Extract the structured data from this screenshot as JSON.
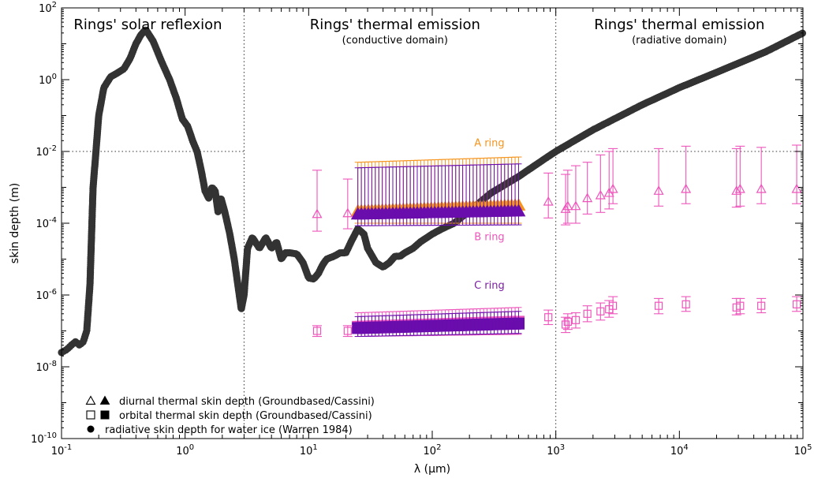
{
  "chart_data": {
    "type": "scatter",
    "xlabel": "λ (μm)",
    "ylabel": "skin depth (m)",
    "xscale": "log",
    "yscale": "log",
    "xlim": [
      0.1,
      100000
    ],
    "ylim": [
      1e-10,
      100
    ],
    "grid": false,
    "legend_position": "bottom-left",
    "x_ticks": [
      {
        "v": 0.1,
        "base": "10",
        "exp": "-1"
      },
      {
        "v": 1,
        "base": "10",
        "exp": "0"
      },
      {
        "v": 10,
        "base": "10",
        "exp": "1"
      },
      {
        "v": 100,
        "base": "10",
        "exp": "2"
      },
      {
        "v": 1000,
        "base": "10",
        "exp": "3"
      },
      {
        "v": 10000,
        "base": "10",
        "exp": "4"
      },
      {
        "v": 100000,
        "base": "10",
        "exp": "5"
      }
    ],
    "y_ticks": [
      {
        "v": 1e-10,
        "base": "10",
        "exp": "-10"
      },
      {
        "v": 1e-08,
        "base": "10",
        "exp": "-8"
      },
      {
        "v": 1e-06,
        "base": "10",
        "exp": "-6"
      },
      {
        "v": 0.0001,
        "base": "10",
        "exp": "-4"
      },
      {
        "v": 0.01,
        "base": "10",
        "exp": "-2"
      },
      {
        "v": 1,
        "base": "10",
        "exp": "0"
      },
      {
        "v": 100,
        "base": "10",
        "exp": "2"
      }
    ],
    "regions": [
      {
        "title": "Rings' solar reflexion",
        "subtitle": "",
        "center_x": 0.5
      },
      {
        "title": "Rings' thermal emission",
        "subtitle": "(conductive domain)",
        "center_x": 50
      },
      {
        "title": "Rings' thermal emission",
        "subtitle": "(radiative domain)",
        "center_x": 10000
      }
    ],
    "vlines": [
      3,
      1000
    ],
    "hlines": [
      {
        "y": 0.01,
        "x_from": 0.1,
        "x_to": 3
      },
      {
        "y": 0.01,
        "x_from": 1000,
        "x_to": 100000
      }
    ],
    "ring_labels": [
      {
        "text": "A ring",
        "x": 290,
        "y": 0.014,
        "color": "#f7941d"
      },
      {
        "text": "B ring",
        "x": 290,
        "y": 3.4e-05,
        "color": "#ee55bb"
      },
      {
        "text": "C ring",
        "x": 290,
        "y": 1.5e-06,
        "color": "#7b1fa2"
      }
    ],
    "colors": {
      "water_ice": "#333333",
      "groundbased": "#ee55bb",
      "ring_A": "#f7941d",
      "ring_B": "#ee55bb",
      "ring_C": "#6a0dad"
    },
    "legend": [
      {
        "symbols": [
          "open-triangle",
          "filled-triangle"
        ],
        "label": "diurnal thermal skin depth (Groundbased/Cassini)"
      },
      {
        "symbols": [
          "open-square",
          "filled-square"
        ],
        "label": "orbital thermal skin depth (Groundbased/Cassini)"
      },
      {
        "symbols": [
          "filled-circle"
        ],
        "label": "radiative skin depth for water ice (Warren 1984)"
      }
    ],
    "water_ice_curve": {
      "name": "radiative skin depth for water ice (Warren 1984)",
      "x": [
        0.1,
        0.11,
        0.12,
        0.13,
        0.14,
        0.15,
        0.16,
        0.17,
        0.18,
        0.19,
        0.2,
        0.22,
        0.25,
        0.28,
        0.32,
        0.36,
        0.4,
        0.44,
        0.48,
        0.55,
        0.65,
        0.75,
        0.85,
        0.95,
        1.05,
        1.15,
        1.25,
        1.35,
        1.45,
        1.55,
        1.65,
        1.75,
        1.85,
        1.95,
        2.1,
        2.3,
        2.5,
        2.7,
        2.85,
        3.0,
        3.2,
        3.5,
        4.0,
        4.5,
        5.0,
        5.5,
        6.0,
        6.5,
        7.0,
        8.0,
        9.0,
        10,
        11,
        12,
        13,
        14,
        16,
        18,
        20,
        22,
        25,
        28,
        30,
        35,
        40,
        45,
        50,
        55,
        60,
        70,
        80,
        100,
        120,
        150,
        200,
        300,
        500,
        800,
        1000,
        2000,
        5000,
        10000,
        20000,
        50000,
        100000
      ],
      "y": [
        2.5e-08,
        3e-08,
        4e-08,
        5e-08,
        4e-08,
        5e-08,
        1e-07,
        2e-06,
        0.001,
        0.01,
        0.1,
        0.6,
        1.2,
        1.5,
        2.0,
        4.0,
        10,
        18,
        25,
        12,
        3.0,
        1.0,
        0.3,
        0.08,
        0.05,
        0.02,
        0.01,
        0.003,
        0.0008,
        0.0005,
        0.001,
        0.0008,
        0.0002,
        0.0005,
        0.0002,
        5e-05,
        1e-05,
        1.5e-06,
        4e-07,
        1e-06,
        2e-05,
        4e-05,
        2e-05,
        4e-05,
        2e-05,
        3e-05,
        1e-05,
        1.5e-05,
        1.5e-05,
        1.4e-05,
        8e-06,
        3e-06,
        2.8e-06,
        4e-06,
        7e-06,
        1e-05,
        1.2e-05,
        1.5e-05,
        1.5e-05,
        3e-05,
        7e-05,
        5e-05,
        2e-05,
        8e-06,
        6e-06,
        8e-06,
        1.2e-05,
        1.2e-05,
        1.5e-05,
        2e-05,
        3e-05,
        5e-05,
        7e-05,
        0.0001,
        0.00022,
        0.0007,
        0.002,
        0.006,
        0.01,
        0.04,
        0.2,
        0.6,
        1.6,
        6,
        20
      ]
    },
    "groundbased_diurnal": {
      "name": "diurnal thermal skin depth (Groundbased)",
      "points": [
        {
          "x": 11.7,
          "y": 0.00018,
          "lo": 6e-05,
          "hi": 0.003
        },
        {
          "x": 20.7,
          "y": 0.00019,
          "lo": 7e-05,
          "hi": 0.0017
        },
        {
          "x": 870,
          "y": 0.0004,
          "lo": 0.00014,
          "hi": 0.0025
        },
        {
          "x": 1200,
          "y": 0.00025,
          "lo": 9e-05,
          "hi": 0.0023
        },
        {
          "x": 1250,
          "y": 0.0003,
          "lo": 0.0001,
          "hi": 0.003
        },
        {
          "x": 1450,
          "y": 0.0003,
          "lo": 0.0001,
          "hi": 0.004
        },
        {
          "x": 1800,
          "y": 0.0005,
          "lo": 0.00018,
          "hi": 0.005
        },
        {
          "x": 2300,
          "y": 0.0006,
          "lo": 0.0002,
          "hi": 0.008
        },
        {
          "x": 2700,
          "y": 0.0007,
          "lo": 0.00025,
          "hi": 0.01
        },
        {
          "x": 2900,
          "y": 0.0009,
          "lo": 0.00035,
          "hi": 0.012
        },
        {
          "x": 6800,
          "y": 0.0008,
          "lo": 0.0003,
          "hi": 0.012
        },
        {
          "x": 11300,
          "y": 0.0009,
          "lo": 0.00035,
          "hi": 0.014
        },
        {
          "x": 29000,
          "y": 0.0008,
          "lo": 0.00028,
          "hi": 0.012
        },
        {
          "x": 31000,
          "y": 0.0009,
          "lo": 0.0003,
          "hi": 0.014
        },
        {
          "x": 46000,
          "y": 0.0009,
          "lo": 0.00035,
          "hi": 0.013
        },
        {
          "x": 89000,
          "y": 0.0009,
          "lo": 0.00035,
          "hi": 0.015
        }
      ]
    },
    "groundbased_orbital": {
      "name": "orbital thermal skin depth (Groundbased)",
      "points": [
        {
          "x": 11.7,
          "y": 1e-07,
          "lo": 7e-08,
          "hi": 1.4e-07
        },
        {
          "x": 20.7,
          "y": 1e-07,
          "lo": 7e-08,
          "hi": 1.4e-07
        },
        {
          "x": 870,
          "y": 2.4e-07,
          "lo": 1.5e-07,
          "hi": 3.8e-07
        },
        {
          "x": 1200,
          "y": 1.5e-07,
          "lo": 9e-08,
          "hi": 2.4e-07
        },
        {
          "x": 1250,
          "y": 1.8e-07,
          "lo": 1.1e-07,
          "hi": 3e-07
        },
        {
          "x": 1450,
          "y": 2e-07,
          "lo": 1.2e-07,
          "hi": 3.2e-07
        },
        {
          "x": 1800,
          "y": 3e-07,
          "lo": 1.8e-07,
          "hi": 5e-07
        },
        {
          "x": 2300,
          "y": 3.5e-07,
          "lo": 2e-07,
          "hi": 6e-07
        },
        {
          "x": 2700,
          "y": 4e-07,
          "lo": 2.4e-07,
          "hi": 7e-07
        },
        {
          "x": 2900,
          "y": 5e-07,
          "lo": 3e-07,
          "hi": 9e-07
        },
        {
          "x": 6800,
          "y": 5e-07,
          "lo": 3e-07,
          "hi": 8e-07
        },
        {
          "x": 11300,
          "y": 5.5e-07,
          "lo": 3.5e-07,
          "hi": 9e-07
        },
        {
          "x": 29000,
          "y": 4.5e-07,
          "lo": 2.8e-07,
          "hi": 8e-07
        },
        {
          "x": 31000,
          "y": 5e-07,
          "lo": 3e-07,
          "hi": 8e-07
        },
        {
          "x": 46000,
          "y": 5e-07,
          "lo": 3.2e-07,
          "hi": 8e-07
        },
        {
          "x": 89000,
          "y": 5.5e-07,
          "lo": 3.5e-07,
          "hi": 9e-07
        }
      ]
    },
    "cassini_bands": [
      {
        "ring": "A",
        "symbol": "triangle",
        "x_from": 25,
        "x_to": 500,
        "y_from": 0.00022,
        "y_to": 0.00032,
        "lo_from": 0.0001,
        "lo_to": 0.0001,
        "hi_from": 0.005,
        "hi_to": 0.007
      },
      {
        "ring": "C",
        "symbol": "triangle",
        "x_from": 25,
        "x_to": 500,
        "y_from": 0.00018,
        "y_to": 0.00022,
        "lo_from": 8.5e-05,
        "lo_to": 9e-05,
        "hi_from": 0.0035,
        "hi_to": 0.0045
      },
      {
        "ring": "B",
        "symbol": "square",
        "x_from": 25,
        "x_to": 500,
        "y_from": 1.3e-07,
        "y_to": 1.8e-07,
        "lo_from": 7e-08,
        "lo_to": 8e-08,
        "hi_from": 3.2e-07,
        "hi_to": 4.5e-07
      },
      {
        "ring": "C",
        "symbol": "square",
        "x_from": 25,
        "x_to": 500,
        "y_from": 1.2e-07,
        "y_to": 1.6e-07,
        "lo_from": 7e-08,
        "lo_to": 8.5e-08,
        "hi_from": 2.5e-07,
        "hi_to": 3.5e-07
      }
    ]
  }
}
